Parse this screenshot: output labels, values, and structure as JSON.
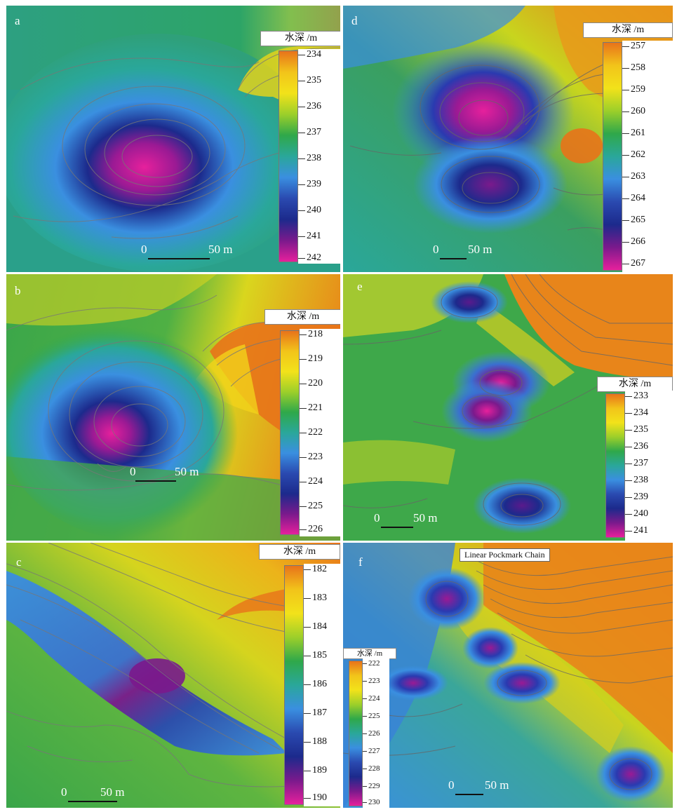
{
  "panels": [
    {
      "id": "a",
      "label": "a",
      "cb_title": "水深 /m",
      "ticks": [
        "234",
        "235",
        "236",
        "237",
        "238",
        "239",
        "240",
        "241",
        "242"
      ],
      "scale": {
        "zero": "0",
        "dist": "50 m"
      }
    },
    {
      "id": "b",
      "label": "b",
      "cb_title": "水深 /m",
      "ticks": [
        "218",
        "219",
        "220",
        "221",
        "222",
        "223",
        "224",
        "225",
        "226"
      ],
      "scale": {
        "zero": "0",
        "dist": "50 m"
      }
    },
    {
      "id": "c",
      "label": "c",
      "cb_title": "水深 /m",
      "ticks": [
        "182",
        "183",
        "184",
        "185",
        "186",
        "187",
        "188",
        "189",
        "190"
      ],
      "scale": {
        "zero": "0",
        "dist": "50 m"
      }
    },
    {
      "id": "d",
      "label": "d",
      "cb_title": "水深 /m",
      "ticks": [
        "257",
        "258",
        "259",
        "260",
        "261",
        "262",
        "263",
        "264",
        "265",
        "266",
        "267"
      ],
      "scale": {
        "zero": "0",
        "dist": "50 m"
      }
    },
    {
      "id": "e",
      "label": "e",
      "cb_title": "水深 /m",
      "ticks": [
        "233",
        "234",
        "235",
        "236",
        "237",
        "238",
        "239",
        "240",
        "241"
      ],
      "scale": {
        "zero": "0",
        "dist": "50 m"
      }
    },
    {
      "id": "f",
      "label": "f",
      "cb_title": "水深 /m",
      "ticks": [
        "222",
        "223",
        "224",
        "225",
        "226",
        "227",
        "228",
        "229",
        "230"
      ],
      "scale": {
        "zero": "0",
        "dist": "50 m"
      },
      "callout": "Linear Pockmark Chain"
    }
  ],
  "colors": {
    "orange": "#e8731a",
    "yellow": "#f2e21a",
    "green": "#2fa84a",
    "teal": "#2aa79a",
    "blue": "#3a8fe0",
    "navy": "#1c2a8c",
    "purple": "#7a1a8c",
    "magenta": "#e6209c"
  }
}
